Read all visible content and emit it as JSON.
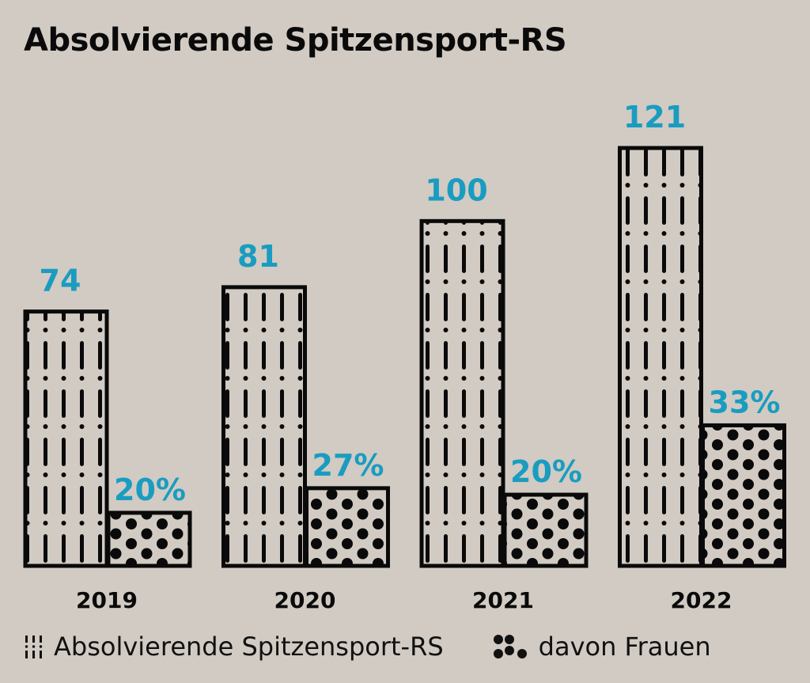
{
  "title": "Absolvierende Spitzensport-RS",
  "colors": {
    "background": "#d1cbc3",
    "value_label": "#1a9cc0",
    "bar_outline": "#0a0a0a",
    "pattern": "#0a0a0a"
  },
  "legend": [
    {
      "label": "Absolvierende Spitzensport-RS",
      "icon": "dash-dot-pattern-icon"
    },
    {
      "label": "davon Frauen",
      "icon": "dot-pattern-icon"
    }
  ],
  "chart_data": {
    "type": "bar",
    "title": "Absolvierende Spitzensport-RS",
    "xlabel": "",
    "ylabel": "",
    "categories": [
      "2019",
      "2020",
      "2021",
      "2022"
    ],
    "series": [
      {
        "name": "Absolvierende Spitzensport-RS",
        "values": [
          74,
          81,
          100,
          121
        ],
        "labels": [
          "74",
          "81",
          "100",
          "121"
        ]
      },
      {
        "name": "davon Frauen",
        "values": [
          20,
          27,
          20,
          33
        ],
        "unit": "%",
        "labels": [
          "20%",
          "27%",
          "20%",
          "33%"
        ]
      }
    ],
    "ylim": [
      0,
      121
    ],
    "grid": false,
    "legend_position": "bottom"
  }
}
